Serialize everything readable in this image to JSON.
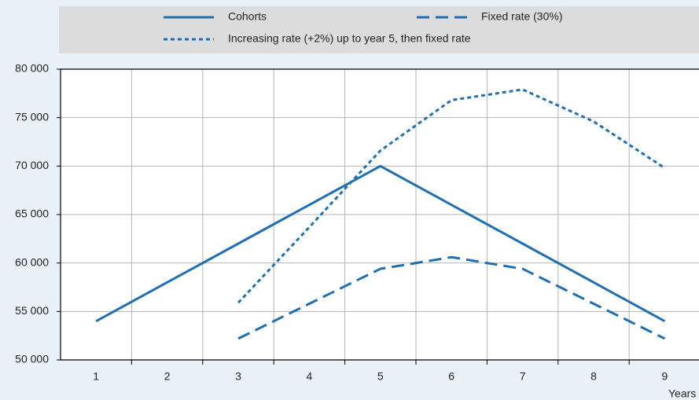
{
  "chart_data": {
    "type": "line",
    "x_label": "Years",
    "categories": [
      "1",
      "2",
      "3",
      "4",
      "5",
      "6",
      "7",
      "8",
      "9"
    ],
    "series": [
      {
        "name": "Cohorts",
        "color": "#1f6fb2",
        "style": "solid",
        "values": [
          54000,
          58000,
          62000,
          66000,
          70000,
          66000,
          62000,
          58000,
          54000
        ]
      },
      {
        "name": "Fixed rate (30%)",
        "color": "#1f6fb2",
        "style": "dashed",
        "values": [
          null,
          null,
          52200,
          55800,
          59400,
          60600,
          59400,
          55800,
          52200
        ]
      },
      {
        "name": "Increasing rate (+2%) up to year 5, then fixed rate",
        "color": "#1f6fb2",
        "style": "dotted",
        "values": [
          null,
          null,
          55900,
          63700,
          71600,
          76800,
          77900,
          74600,
          69800
        ]
      }
    ],
    "ylim": [
      50000,
      80000
    ],
    "yticks": [
      {
        "value": 50000,
        "label": "50 000"
      },
      {
        "value": 55000,
        "label": "55 000"
      },
      {
        "value": 60000,
        "label": "60 000"
      },
      {
        "value": 65000,
        "label": "65 000"
      },
      {
        "value": 70000,
        "label": "70 000"
      },
      {
        "value": 75000,
        "label": "75 000"
      },
      {
        "value": 80000,
        "label": "80 000"
      }
    ],
    "grid": true
  }
}
